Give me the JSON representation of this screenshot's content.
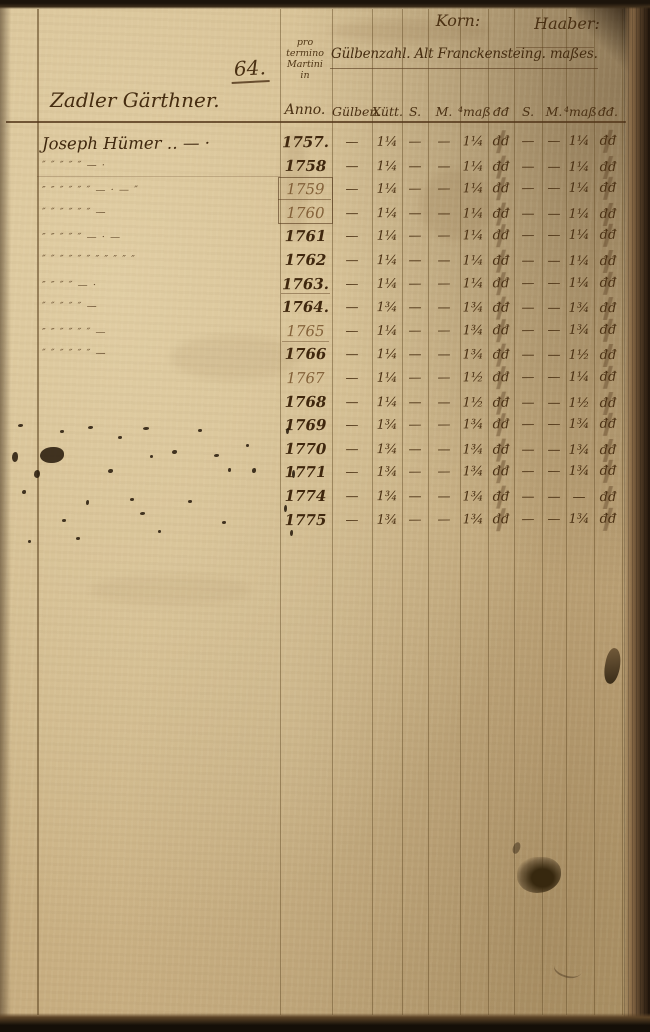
{
  "document": {
    "page_number": "64.",
    "left_header": "Zadler Gärthner.",
    "term_lines": [
      "pro",
      "termino",
      "Martini",
      "in"
    ],
    "anno_label": "Anno.",
    "section_korn": "Korn:",
    "section_haaber": "Haaber:",
    "main_header": "Gülbenzahl. Alt Franckensteing. maßes.",
    "sub_headers": [
      "Gülben.",
      "Xütt.",
      "S.",
      "M.",
      "⁴maß",
      "đđ",
      "S.",
      "M.",
      "⁴maß",
      "đđ."
    ]
  },
  "rows": [
    {
      "year": "1757.",
      "name": "Joseph Hümer ‥ — ·",
      "g": "—",
      "x": "1¼",
      "k1": "—",
      "k2": "—",
      "k3": "1¼",
      "k4": "đđ",
      "h1": "—",
      "h2": "—",
      "h3": "1¼",
      "h4": "đđ"
    },
    {
      "year": "1758",
      "name": "″ ″ ″ ″ ″  — ·",
      "g": "—",
      "x": "1¼",
      "k1": "—",
      "k2": "—",
      "k3": "1¼",
      "k4": "đđ",
      "h1": "—",
      "h2": "—",
      "h3": "1¼",
      "h4": "đđ"
    },
    {
      "year": "1759",
      "name": "″ ″ ″ ″ ″ ″ — · — ″",
      "g": "—",
      "x": "1¼",
      "k1": "—",
      "k2": "—",
      "k3": "1¼",
      "k4": "đđ",
      "h1": "—",
      "h2": "—",
      "h3": "1¼",
      "h4": "đđ"
    },
    {
      "year": "1760",
      "name": "″ ″ ″ ″ ″ ″ —",
      "g": "—",
      "x": "1¼",
      "k1": "—",
      "k2": "—",
      "k3": "1¼",
      "k4": "đđ",
      "h1": "—",
      "h2": "—",
      "h3": "1¼",
      "h4": "đđ"
    },
    {
      "year": "1761",
      "name": "″ ″ ″ ″ ″ — · —",
      "g": "—",
      "x": "1¼",
      "k1": "—",
      "k2": "—",
      "k3": "1¼",
      "k4": "đđ",
      "h1": "—",
      "h2": "—",
      "h3": "1¼",
      "h4": "đđ"
    },
    {
      "year": "1762",
      "name": "″ ″ ″ ″ ″ ″ ″ ″ ″ ″ ″",
      "g": "—",
      "x": "1¼",
      "k1": "—",
      "k2": "—",
      "k3": "1¼",
      "k4": "đđ",
      "h1": "—",
      "h2": "—",
      "h3": "1¼",
      "h4": "đđ"
    },
    {
      "year": "1763.",
      "name": "″ ″ ″ ″ — ·",
      "g": "—",
      "x": "1¼",
      "k1": "—",
      "k2": "—",
      "k3": "1¼",
      "k4": "đđ",
      "h1": "—",
      "h2": "—",
      "h3": "1¼",
      "h4": "đđ"
    },
    {
      "year": "1764.",
      "name": "″ ″ ″ ″ ″ —",
      "g": "—",
      "x": "1¾",
      "k1": "—",
      "k2": "—",
      "k3": "1¾",
      "k4": "đđ",
      "h1": "—",
      "h2": "—",
      "h3": "1¾",
      "h4": "đđ"
    },
    {
      "year": "1765",
      "name": "″ ″ ″ ″ ″ ″ —",
      "g": "—",
      "x": "1¼",
      "k1": "—",
      "k2": "—",
      "k3": "1¾",
      "k4": "đđ",
      "h1": "—",
      "h2": "—",
      "h3": "1¾",
      "h4": "đđ"
    },
    {
      "year": "1766",
      "name": "″ ″ ″ ″ ″ ″ —",
      "g": "—",
      "x": "1¼",
      "k1": "—",
      "k2": "—",
      "k3": "1¾",
      "k4": "đđ",
      "h1": "—",
      "h2": "—",
      "h3": "1½",
      "h4": "đđ"
    },
    {
      "year": "1767",
      "name": "",
      "g": "—",
      "x": "1¼",
      "k1": "—",
      "k2": "—",
      "k3": "1½",
      "k4": "đđ",
      "h1": "—",
      "h2": "—",
      "h3": "1¼",
      "h4": "đđ"
    },
    {
      "year": "1768",
      "name": "",
      "g": "—",
      "x": "1¼",
      "k1": "—",
      "k2": "—",
      "k3": "1½",
      "k4": "đđ",
      "h1": "—",
      "h2": "—",
      "h3": "1½",
      "h4": "đđ"
    },
    {
      "year": "1769",
      "name": "",
      "g": "—",
      "x": "1¾",
      "k1": "—",
      "k2": "—",
      "k3": "1¾",
      "k4": "đđ",
      "h1": "—",
      "h2": "—",
      "h3": "1¾",
      "h4": "đđ"
    },
    {
      "year": "1770",
      "name": "",
      "g": "—",
      "x": "1¾",
      "k1": "—",
      "k2": "—",
      "k3": "1¾",
      "k4": "đđ",
      "h1": "—",
      "h2": "—",
      "h3": "1¾",
      "h4": "đđ"
    },
    {
      "year": "1771",
      "name": "",
      "g": "—",
      "x": "1¾",
      "k1": "—",
      "k2": "—",
      "k3": "1¾",
      "k4": "đđ",
      "h1": "—",
      "h2": "—",
      "h3": "1¾",
      "h4": "đđ"
    },
    {
      "year": "1774",
      "name": "",
      "g": "—",
      "x": "1¾",
      "k1": "—",
      "k2": "—",
      "k3": "1¾",
      "k4": "đđ",
      "h1": "—",
      "h2": "—",
      "h3": "—",
      "h4": "đđ"
    },
    {
      "year": "1775",
      "name": "",
      "g": "—",
      "x": "1¾",
      "k1": "—",
      "k2": "—",
      "k3": "1¾",
      "k4": "đđ",
      "h1": "—",
      "h2": "—",
      "h3": "1¾",
      "h4": "đđ"
    }
  ]
}
